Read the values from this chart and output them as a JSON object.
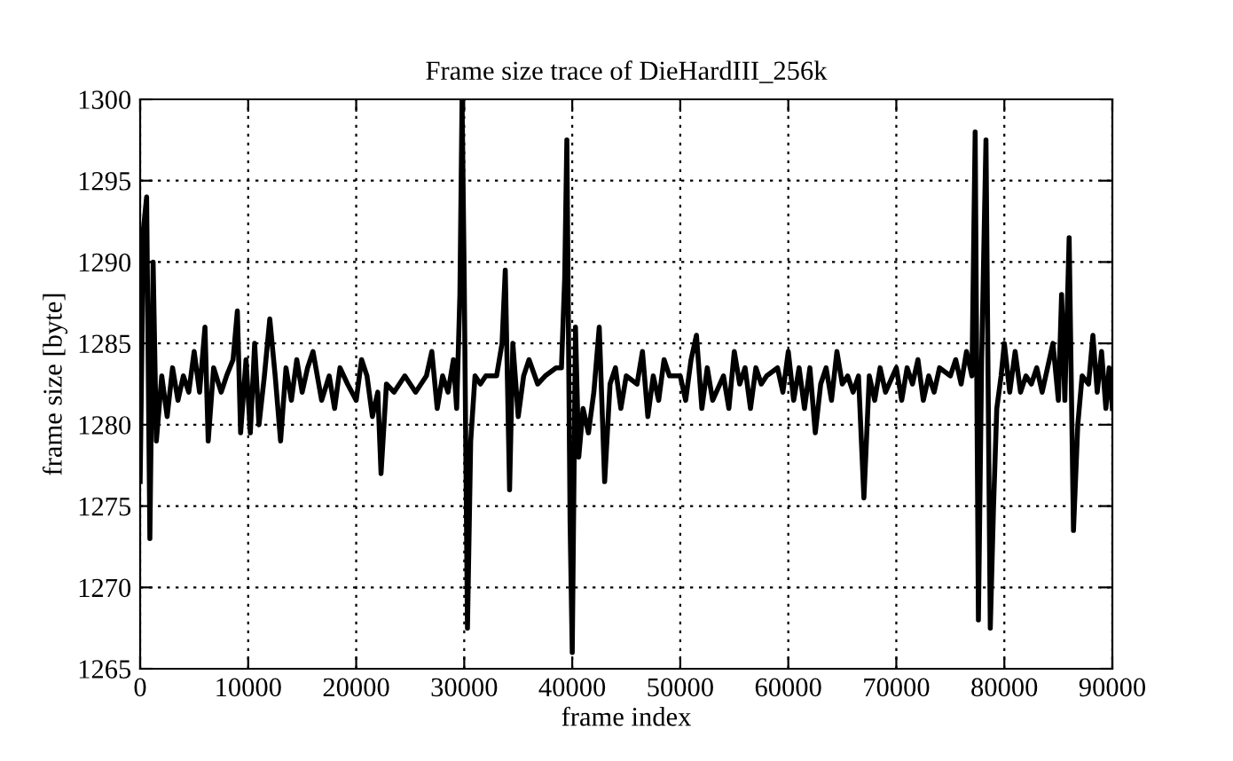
{
  "chart_data": {
    "type": "line",
    "title": "Frame size trace of DieHardIII_256k",
    "xlabel": "frame index",
    "ylabel": "frame size [byte]",
    "xlim": [
      0,
      90000
    ],
    "xticks": [
      0,
      10000,
      20000,
      30000,
      40000,
      50000,
      60000,
      70000,
      80000,
      90000
    ],
    "ylim": [
      1265,
      1300
    ],
    "yticks": [
      1265,
      1270,
      1275,
      1280,
      1285,
      1290,
      1295,
      1300
    ],
    "grid": true,
    "legend": false,
    "marker": "none",
    "line_style": "solid",
    "series": [
      {
        "color": "#000000",
        "x": [
          0,
          300,
          600,
          900,
          1200,
          1500,
          2000,
          2500,
          3000,
          3500,
          4000,
          4500,
          5000,
          5500,
          6000,
          6300,
          6800,
          7500,
          8000,
          8600,
          9000,
          9300,
          9800,
          10200,
          10600,
          11000,
          11500,
          12000,
          12500,
          13000,
          13500,
          14000,
          14500,
          15000,
          15500,
          16000,
          16800,
          17500,
          18000,
          18500,
          19200,
          20000,
          20500,
          21000,
          21500,
          22000,
          22300,
          22800,
          23500,
          24500,
          25500,
          26500,
          27000,
          27500,
          28000,
          28500,
          29000,
          29300,
          29600,
          29800,
          30000,
          30300,
          30600,
          31000,
          31500,
          32000,
          33000,
          33500,
          33800,
          34200,
          34500,
          35000,
          35500,
          36000,
          36800,
          37500,
          38500,
          39000,
          39300,
          39500,
          39800,
          40000,
          40300,
          40600,
          41000,
          41500,
          42000,
          42500,
          43000,
          43500,
          44000,
          44500,
          45000,
          46000,
          46500,
          47000,
          47500,
          48000,
          48500,
          49000,
          50000,
          50500,
          51000,
          51500,
          52000,
          52500,
          53000,
          54000,
          54500,
          55000,
          55500,
          56000,
          56500,
          57000,
          57500,
          58000,
          59000,
          59500,
          60000,
          60500,
          61000,
          61500,
          62000,
          62500,
          63000,
          63500,
          64000,
          64500,
          65000,
          65500,
          66000,
          66500,
          67000,
          67500,
          68000,
          68500,
          69000,
          70000,
          70500,
          71000,
          71500,
          72000,
          72500,
          73000,
          73500,
          74000,
          75000,
          75500,
          76000,
          76500,
          77000,
          77300,
          77600,
          77900,
          78300,
          78700,
          79000,
          79300,
          79700,
          80000,
          80500,
          81000,
          81500,
          82000,
          82500,
          83000,
          83500,
          84000,
          84500,
          85000,
          85300,
          85600,
          86000,
          86400,
          86800,
          87200,
          87800,
          88200,
          88600,
          89000,
          89400,
          89700,
          90000
        ],
        "values": [
          1276.5,
          1292,
          1294,
          1273,
          1290,
          1279,
          1283,
          1280.5,
          1283.5,
          1281.5,
          1283,
          1282,
          1284.5,
          1282,
          1286,
          1279,
          1283.5,
          1282,
          1283,
          1284,
          1287,
          1279.5,
          1284,
          1279.5,
          1285,
          1280,
          1283,
          1286.5,
          1283,
          1279,
          1283.5,
          1281.5,
          1284,
          1282,
          1283.5,
          1284.5,
          1281.5,
          1283,
          1281,
          1283.5,
          1282.5,
          1281.5,
          1284,
          1283,
          1280.5,
          1282,
          1277,
          1282.5,
          1282,
          1283,
          1282,
          1283,
          1284.5,
          1281,
          1283,
          1282,
          1284,
          1281,
          1288,
          1300,
          1289,
          1267.5,
          1279,
          1283,
          1282.5,
          1283,
          1283,
          1285,
          1289.5,
          1276,
          1285,
          1280.5,
          1283,
          1284,
          1282.5,
          1283,
          1283.5,
          1283.5,
          1289,
          1297.5,
          1274,
          1266,
          1286,
          1278,
          1281,
          1279.5,
          1282,
          1286,
          1276.5,
          1282.5,
          1283.5,
          1281,
          1283,
          1282.5,
          1284.5,
          1280.5,
          1283,
          1281.5,
          1284,
          1283,
          1283,
          1281.5,
          1284,
          1285.5,
          1281,
          1283.5,
          1281.5,
          1283,
          1281,
          1284.5,
          1282.5,
          1283.5,
          1281,
          1283.5,
          1282.5,
          1283,
          1283.5,
          1282,
          1284.5,
          1281.5,
          1283.5,
          1281,
          1283.5,
          1279.5,
          1282.5,
          1283.5,
          1281.5,
          1284.5,
          1282.5,
          1283,
          1282,
          1283,
          1275.5,
          1283,
          1281.5,
          1283.5,
          1282,
          1283.5,
          1281.5,
          1283.5,
          1282.5,
          1284,
          1281.5,
          1283,
          1282,
          1283.5,
          1283,
          1284,
          1282.5,
          1284.5,
          1283,
          1298,
          1268,
          1284,
          1297.5,
          1267.5,
          1275,
          1281,
          1283,
          1285,
          1282,
          1284.5,
          1282,
          1283,
          1282.5,
          1283.5,
          1282,
          1283.5,
          1285,
          1281.5,
          1288,
          1281.5,
          1291.5,
          1273.5,
          1280,
          1283,
          1282.5,
          1285.5,
          1282,
          1284.5,
          1281,
          1283.5,
          1281
        ]
      }
    ]
  }
}
